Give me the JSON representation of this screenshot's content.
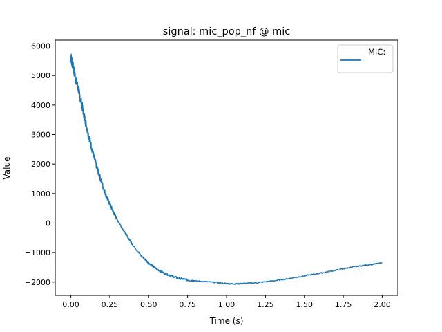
{
  "chart_data": {
    "type": "line",
    "title": "signal: mic_pop_nf @ mic",
    "xlabel": "Time (s)",
    "ylabel": "Value",
    "xlim": [
      -0.1,
      2.1
    ],
    "ylim": [
      -2450,
      6200
    ],
    "xticks": [
      0.0,
      0.25,
      0.5,
      0.75,
      1.0,
      1.25,
      1.5,
      1.75,
      2.0
    ],
    "xtick_labels": [
      "0.00",
      "0.25",
      "0.50",
      "0.75",
      "1.00",
      "1.25",
      "1.50",
      "1.75",
      "2.00"
    ],
    "yticks": [
      -2000,
      -1000,
      0,
      1000,
      2000,
      3000,
      4000,
      5000,
      6000
    ],
    "ytick_labels": [
      "−2000",
      "−1000",
      "0",
      "1000",
      "2000",
      "3000",
      "4000",
      "5000",
      "6000"
    ],
    "grid": false,
    "legend_position": "top-right",
    "series": [
      {
        "name": "MIC:",
        "color": "#1f77b4",
        "x": [
          0.0,
          0.01,
          0.025,
          0.05,
          0.075,
          0.1,
          0.125,
          0.15,
          0.175,
          0.2,
          0.225,
          0.25,
          0.275,
          0.3,
          0.35,
          0.4,
          0.45,
          0.5,
          0.55,
          0.6,
          0.65,
          0.7,
          0.75,
          0.8,
          0.9,
          1.0,
          1.05,
          1.1,
          1.2,
          1.3,
          1.4,
          1.5,
          1.6,
          1.7,
          1.8,
          1.9,
          2.0
        ],
        "y": [
          5650,
          5400,
          5050,
          4500,
          3900,
          3300,
          2750,
          2200,
          1750,
          1350,
          950,
          650,
          350,
          100,
          -350,
          -750,
          -1100,
          -1350,
          -1550,
          -1700,
          -1800,
          -1880,
          -1930,
          -1960,
          -2000,
          -2050,
          -2060,
          -2050,
          -2020,
          -1960,
          -1880,
          -1790,
          -1700,
          -1600,
          -1500,
          -1420,
          -1350
        ]
      }
    ]
  }
}
